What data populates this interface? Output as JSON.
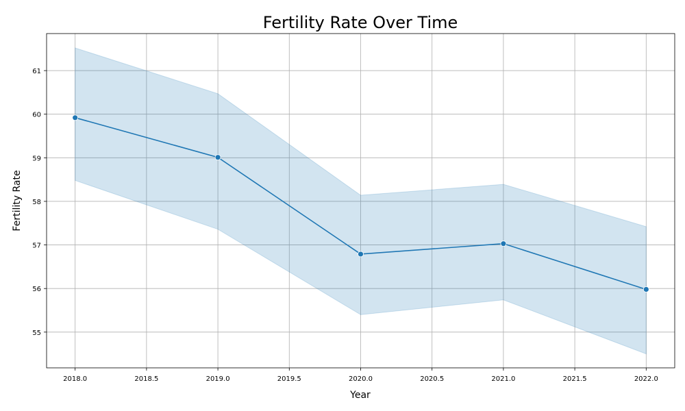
{
  "chart_data": {
    "type": "line",
    "title": "Fertility Rate Over Time",
    "xlabel": "Year",
    "ylabel": "Fertility Rate",
    "x": [
      2018,
      2019,
      2020,
      2021,
      2022
    ],
    "series": [
      {
        "values": [
          59.92,
          59.01,
          56.79,
          57.03,
          55.98
        ],
        "ci_upper": [
          61.52,
          60.47,
          58.14,
          58.39,
          57.42
        ],
        "ci_lower": [
          58.48,
          57.36,
          55.4,
          55.74,
          54.5
        ],
        "color": "#1f77b4"
      }
    ],
    "xlim": [
      2017.8,
      2022.2
    ],
    "ylim": [
      54.18,
      61.85
    ],
    "xticks": [
      2018.0,
      2018.5,
      2019.0,
      2019.5,
      2020.0,
      2020.5,
      2021.0,
      2021.5,
      2022.0
    ],
    "xtick_labels": [
      "2018.0",
      "2018.5",
      "2019.0",
      "2019.5",
      "2020.0",
      "2020.5",
      "2021.0",
      "2021.5",
      "2022.0"
    ],
    "yticks": [
      55,
      56,
      57,
      58,
      59,
      60,
      61
    ],
    "ytick_labels": [
      "55",
      "56",
      "57",
      "58",
      "59",
      "60",
      "61"
    ],
    "grid": true,
    "band_color": "#1f77b4",
    "grid_color": "#b0b0b0"
  }
}
